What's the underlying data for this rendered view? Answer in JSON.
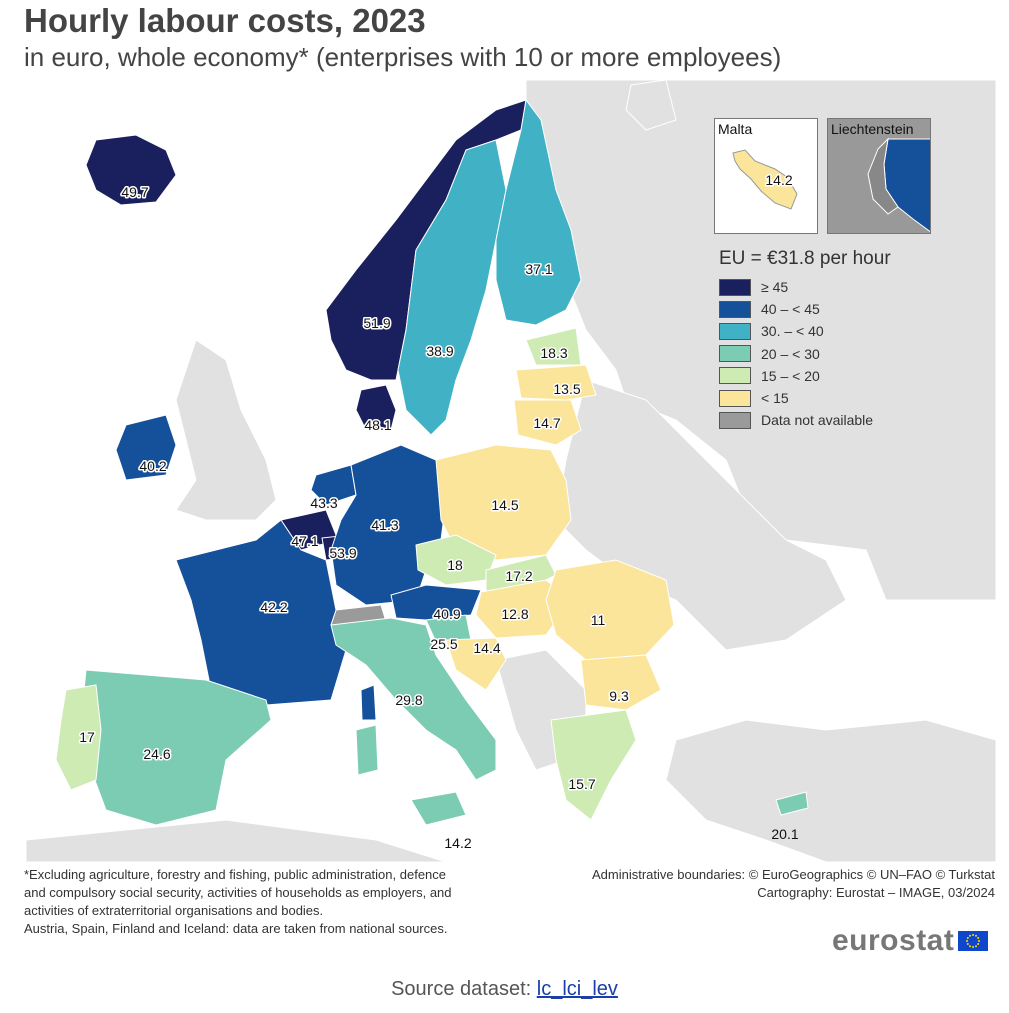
{
  "title": "Hourly labour costs, 2023",
  "subtitle": "in euro, whole economy* (enterprises with 10 or more employees)",
  "legend": {
    "title": "EU = €31.8 per hour",
    "classes": [
      {
        "label": "≥ 45",
        "color": "#1a1f5e"
      },
      {
        "label": "40 – < 45",
        "color": "#15509a"
      },
      {
        "label": "30. – < 40",
        "color": "#41b2c6"
      },
      {
        "label": "20 – < 30",
        "color": "#7cccb3"
      },
      {
        "label": "15 – < 20",
        "color": "#cdebb2"
      },
      {
        "label": "< 15",
        "color": "#fbe59a"
      },
      {
        "label": "Data not available",
        "color": "#9a9a9a"
      }
    ]
  },
  "insets": {
    "malta": {
      "title": "Malta",
      "value": "14.2"
    },
    "liechtenstein": {
      "title": "Liechtenstein"
    }
  },
  "map_values": {
    "iceland": "49.7",
    "norway": "51.9",
    "sweden": "38.9",
    "finland": "37.1",
    "estonia": "18.3",
    "latvia": "13.5",
    "lithuania": "14.7",
    "denmark": "48.1",
    "ireland": "40.2",
    "netherlands": "43.3",
    "belgium": "47.1",
    "luxembourg": "53.9",
    "germany": "41.3",
    "poland": "14.5",
    "czechia": "18",
    "slovakia": "17.2",
    "austria": "40.9",
    "hungary": "12.8",
    "romania": "11",
    "slovenia": "25.5",
    "croatia": "14.4",
    "bulgaria": "9.3",
    "france": "42.2",
    "spain": "24.6",
    "portugal": "17",
    "italy": "29.8",
    "greece": "15.7",
    "cyprus": "20.1",
    "malta_main": "14.2"
  },
  "footnote": [
    "*Excluding agriculture, forestry and fishing, public administration, defence",
    "and compulsory social security, activities of households as employers, and",
    "activities of extraterritorial organisations and bodies.",
    "Austria, Spain, Finland and Iceland: data are taken from national sources."
  ],
  "credits": [
    "Administrative boundaries: © EuroGeographics © UN–FAO © Turkstat",
    "Cartography: Eurostat – IMAGE, 03/2024"
  ],
  "logo": "eurostat",
  "source": {
    "label": "Source dataset: ",
    "link": "lc_lci_lev"
  }
}
